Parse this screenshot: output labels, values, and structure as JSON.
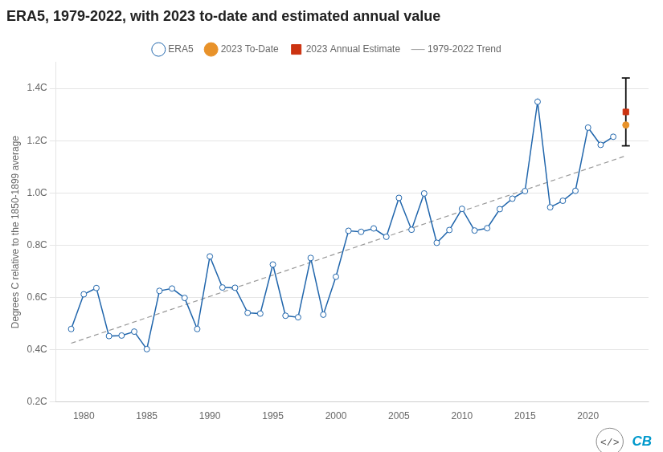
{
  "chart_data": {
    "type": "line",
    "title": "ERA5, 1979-2022, with 2023 to-date and estimated annual value",
    "ylabel": "Degrees C relative to the 1850-1899 average",
    "xlim": [
      1977.8,
      2024.8
    ],
    "xticks": [
      1980,
      1985,
      1990,
      1995,
      2000,
      2005,
      2010,
      2015,
      2020
    ],
    "ylim": [
      0.2,
      1.5
    ],
    "yticks": [
      {
        "value": 0.2,
        "label": "0.2C"
      },
      {
        "value": 0.4,
        "label": "0.4C"
      },
      {
        "value": 0.6,
        "label": "0.6C"
      },
      {
        "value": 0.8,
        "label": "0.8C"
      },
      {
        "value": 1.0,
        "label": "1.0C"
      },
      {
        "value": 1.2,
        "label": "1.2C"
      },
      {
        "value": 1.4,
        "label": "1.4C"
      }
    ],
    "grid": "y",
    "legend": "top",
    "series": [
      {
        "name": "ERA5",
        "type": "line",
        "color": "#2166ac",
        "marker": "open_circle",
        "x": [
          1979,
          1980,
          1981,
          1982,
          1983,
          1984,
          1985,
          1986,
          1987,
          1988,
          1989,
          1990,
          1991,
          1992,
          1993,
          1994,
          1995,
          1996,
          1997,
          1998,
          1999,
          2000,
          2001,
          2002,
          2003,
          2004,
          2005,
          2006,
          2007,
          2008,
          2009,
          2010,
          2011,
          2012,
          2013,
          2014,
          2015,
          2016,
          2017,
          2018,
          2019,
          2020,
          2021,
          2022
        ],
        "values": [
          0.479,
          0.612,
          0.636,
          0.452,
          0.454,
          0.469,
          0.402,
          0.625,
          0.634,
          0.598,
          0.479,
          0.757,
          0.638,
          0.637,
          0.541,
          0.538,
          0.726,
          0.53,
          0.524,
          0.751,
          0.534,
          0.679,
          0.855,
          0.851,
          0.864,
          0.832,
          0.981,
          0.859,
          0.998,
          0.809,
          0.858,
          0.939,
          0.856,
          0.865,
          0.938,
          0.978,
          1.007,
          1.349,
          0.945,
          0.97,
          1.008,
          1.25,
          1.184,
          1.215
        ]
      },
      {
        "name": "2023 To-Date",
        "type": "scatter",
        "color": "#e8922a",
        "marker": "circle",
        "x": [
          2023
        ],
        "values": [
          1.26
        ]
      },
      {
        "name": "2023 Annual Estimate",
        "type": "scatter",
        "color": "#cc3311",
        "marker": "square",
        "x": [
          2023
        ],
        "values": [
          1.31
        ],
        "error_low": [
          1.18
        ],
        "error_high": [
          1.44
        ]
      },
      {
        "name": "1979-2022 Trend",
        "type": "line",
        "color": "#999999",
        "line_style": "dashed",
        "x": [
          1979,
          2023
        ],
        "values": [
          0.42451,
          1.14207
        ]
      }
    ],
    "annotations": [
      {
        "text": "CB",
        "color": "#0099cc"
      },
      {
        "text": "</>"
      }
    ]
  }
}
